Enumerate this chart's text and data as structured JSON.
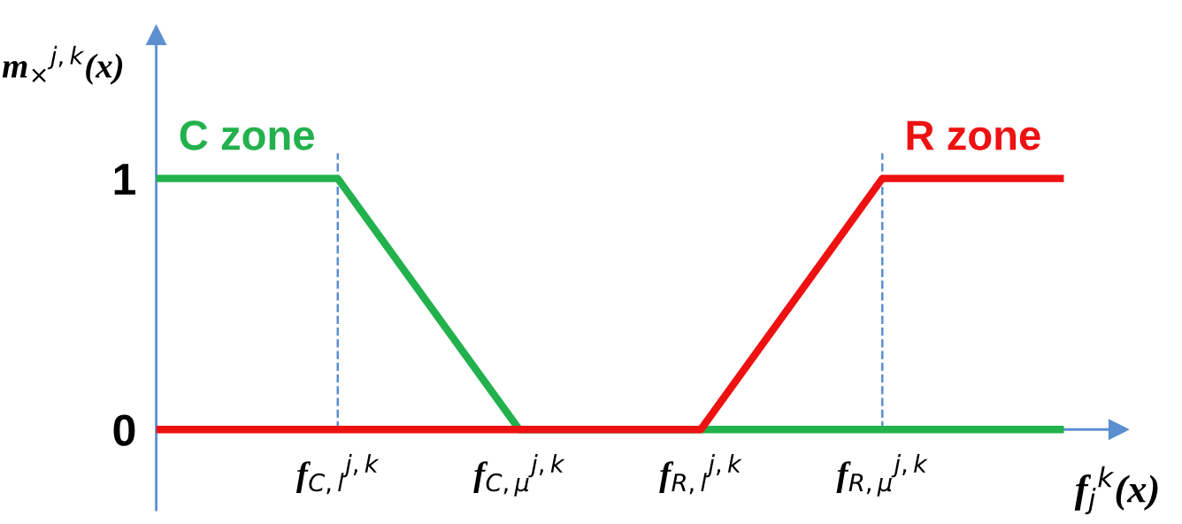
{
  "chart_data": {
    "type": "line",
    "ylabel": "m$_{×}$$^{j,k}$(x)",
    "xlabel": "f$_{j}$$^{k}$(x)",
    "categories": [
      null,
      "f$_{C,l}$$^{j,k}$",
      "f$_{C,μ}$$^{j,k}$",
      "f$_{R,l}$$^{j,k}$",
      "f$_{R,μ}$$^{j,k}$",
      null
    ],
    "series": [
      {
        "name": "C zone",
        "color": "#22b14c",
        "values": [
          1,
          1,
          0,
          0,
          0,
          0
        ]
      },
      {
        "name": "R zone",
        "color": "#ee1111",
        "values": [
          0,
          0,
          0,
          0,
          1,
          1
        ]
      }
    ],
    "ylim": [
      -0.32,
      1.57
    ],
    "yticks": [
      0,
      1
    ],
    "ref_lines": [
      {
        "axis": "x",
        "value": "f$_{C,l}$$^{j,k}$",
        "color": "#5b8fd0",
        "line_style": "dashed"
      },
      {
        "axis": "x",
        "value": "f$_{R,μ}$$^{j,k}$",
        "color": "#5b8fd0",
        "line_style": "dashed"
      }
    ],
    "grid": false,
    "legend": false,
    "marker": "none",
    "line_style": "solid"
  }
}
